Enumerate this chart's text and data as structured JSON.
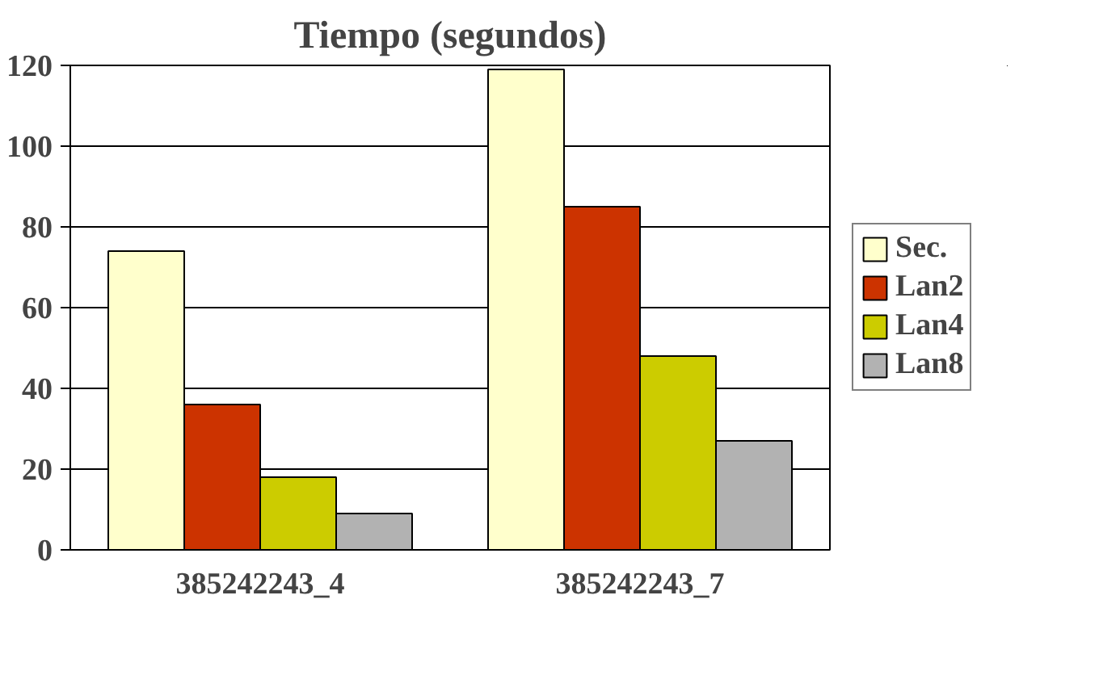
{
  "chart_data": {
    "type": "bar",
    "title": "Tiempo (segundos)",
    "categories": [
      "385242243_4",
      "385242243_7"
    ],
    "series": [
      {
        "name": "Sec.",
        "color": "#ffffcc",
        "values": [
          74,
          119
        ]
      },
      {
        "name": "Lan2",
        "color": "#cc3300",
        "values": [
          36,
          85
        ]
      },
      {
        "name": "Lan4",
        "color": "#cccc00",
        "values": [
          18,
          48
        ]
      },
      {
        "name": "Lan8",
        "color": "#b2b2b2",
        "values": [
          9,
          27
        ]
      }
    ],
    "ylim": [
      0,
      120
    ],
    "yticks": [
      0,
      20,
      40,
      60,
      80,
      100,
      120
    ],
    "grid": "y",
    "legend": "right"
  }
}
